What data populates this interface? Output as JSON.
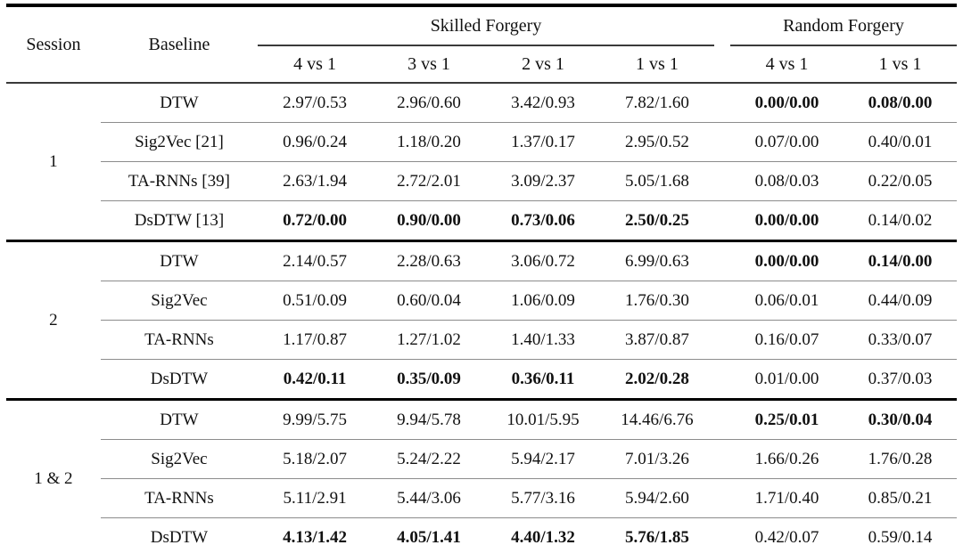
{
  "colors": {
    "text": "#111111",
    "rule_heavy": "#000000",
    "rule_medium": "#3a3a3a",
    "rule_light": "#8c8c8c",
    "background": "#ffffff"
  },
  "table": {
    "header": {
      "session": "Session",
      "baseline": "Baseline",
      "group_skilled": "Skilled Forgery",
      "group_random": "Random Forgery",
      "skilled_subcols": [
        "4 vs 1",
        "3 vs 1",
        "2 vs 1",
        "1 vs 1"
      ],
      "random_subcols": [
        "4 vs 1",
        "1 vs 1"
      ]
    },
    "groups": [
      {
        "session": "1",
        "rows": [
          {
            "baseline": "DTW",
            "values": [
              "2.97/0.53",
              "2.96/0.60",
              "3.42/0.93",
              "7.82/1.60",
              "0.00/0.00",
              "0.08/0.00"
            ],
            "bold": [
              false,
              false,
              false,
              false,
              true,
              true
            ]
          },
          {
            "baseline": "Sig2Vec [21]",
            "values": [
              "0.96/0.24",
              "1.18/0.20",
              "1.37/0.17",
              "2.95/0.52",
              "0.07/0.00",
              "0.40/0.01"
            ],
            "bold": [
              false,
              false,
              false,
              false,
              false,
              false
            ]
          },
          {
            "baseline": "TA-RNNs [39]",
            "values": [
              "2.63/1.94",
              "2.72/2.01",
              "3.09/2.37",
              "5.05/1.68",
              "0.08/0.03",
              "0.22/0.05"
            ],
            "bold": [
              false,
              false,
              false,
              false,
              false,
              false
            ]
          },
          {
            "baseline": "DsDTW [13]",
            "values": [
              "0.72/0.00",
              "0.90/0.00",
              "0.73/0.06",
              "2.50/0.25",
              "0.00/0.00",
              "0.14/0.02"
            ],
            "bold": [
              true,
              true,
              true,
              true,
              true,
              false
            ]
          }
        ]
      },
      {
        "session": "2",
        "rows": [
          {
            "baseline": "DTW",
            "values": [
              "2.14/0.57",
              "2.28/0.63",
              "3.06/0.72",
              "6.99/0.63",
              "0.00/0.00",
              "0.14/0.00"
            ],
            "bold": [
              false,
              false,
              false,
              false,
              true,
              true
            ]
          },
          {
            "baseline": "Sig2Vec",
            "values": [
              "0.51/0.09",
              "0.60/0.04",
              "1.06/0.09",
              "1.76/0.30",
              "0.06/0.01",
              "0.44/0.09"
            ],
            "bold": [
              false,
              false,
              false,
              false,
              false,
              false
            ]
          },
          {
            "baseline": "TA-RNNs",
            "values": [
              "1.17/0.87",
              "1.27/1.02",
              "1.40/1.33",
              "3.87/0.87",
              "0.16/0.07",
              "0.33/0.07"
            ],
            "bold": [
              false,
              false,
              false,
              false,
              false,
              false
            ]
          },
          {
            "baseline": "DsDTW",
            "values": [
              "0.42/0.11",
              "0.35/0.09",
              "0.36/0.11",
              "2.02/0.28",
              "0.01/0.00",
              "0.37/0.03"
            ],
            "bold": [
              true,
              true,
              true,
              true,
              false,
              false
            ]
          }
        ]
      },
      {
        "session": "1 & 2",
        "rows": [
          {
            "baseline": "DTW",
            "values": [
              "9.99/5.75",
              "9.94/5.78",
              "10.01/5.95",
              "14.46/6.76",
              "0.25/0.01",
              "0.30/0.04"
            ],
            "bold": [
              false,
              false,
              false,
              false,
              true,
              true
            ]
          },
          {
            "baseline": "Sig2Vec",
            "values": [
              "5.18/2.07",
              "5.24/2.22",
              "5.94/2.17",
              "7.01/3.26",
              "1.66/0.26",
              "1.76/0.28"
            ],
            "bold": [
              false,
              false,
              false,
              false,
              false,
              false
            ]
          },
          {
            "baseline": "TA-RNNs",
            "values": [
              "5.11/2.91",
              "5.44/3.06",
              "5.77/3.16",
              "5.94/2.60",
              "1.71/0.40",
              "0.85/0.21"
            ],
            "bold": [
              false,
              false,
              false,
              false,
              false,
              false
            ]
          },
          {
            "baseline": "DsDTW",
            "values": [
              "4.13/1.42",
              "4.05/1.41",
              "4.40/1.32",
              "5.76/1.85",
              "0.42/0.07",
              "0.59/0.14"
            ],
            "bold": [
              true,
              true,
              true,
              true,
              false,
              false
            ]
          }
        ]
      }
    ]
  }
}
